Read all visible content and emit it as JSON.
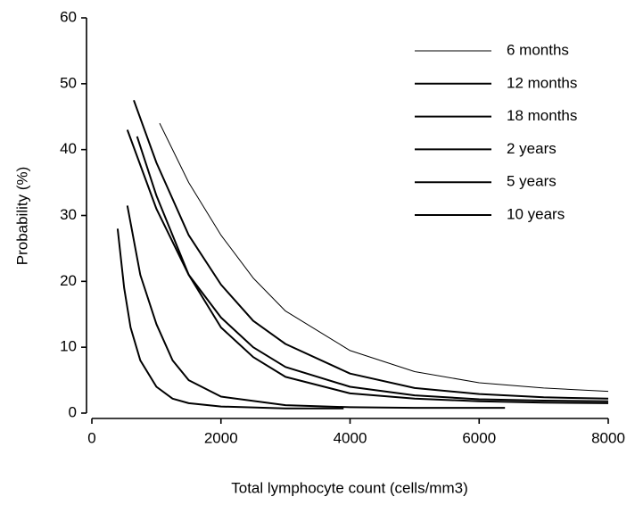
{
  "chart_data": {
    "type": "line",
    "x_label": "Total lymphocyte count (cells/mm3)",
    "y_label": "Probability (%)",
    "xlim": [
      0,
      8000
    ],
    "xticks": [
      0,
      2000,
      4000,
      6000,
      8000
    ],
    "ylim": [
      0,
      60
    ],
    "yticks": [
      0,
      10,
      20,
      30,
      40,
      50,
      60
    ],
    "grid": false,
    "legend": "upper right",
    "series": [
      {
        "name": "6 months",
        "color": "#000000",
        "width": 1,
        "x": [
          1050,
          1500,
          2000,
          2500,
          3000,
          4000,
          5000,
          6000,
          7000,
          8000
        ],
        "values": [
          44,
          35,
          27,
          20.5,
          15.5,
          9.5,
          6.3,
          4.6,
          3.8,
          3.3
        ]
      },
      {
        "name": "12 months",
        "color": "#000000",
        "width": 2,
        "x": [
          650,
          1000,
          1500,
          2000,
          2500,
          3000,
          4000,
          5000,
          6000,
          7000,
          8000
        ],
        "values": [
          47.5,
          38,
          27,
          19.5,
          14,
          10.5,
          6,
          3.8,
          2.9,
          2.4,
          2.2
        ]
      },
      {
        "name": "18 months",
        "color": "#000000",
        "width": 2,
        "x": [
          550,
          1000,
          1500,
          2000,
          2500,
          3000,
          4000,
          5000,
          6000,
          7000,
          8000
        ],
        "values": [
          43,
          31,
          21,
          14.5,
          10,
          7,
          4,
          2.7,
          2.1,
          1.9,
          1.8
        ]
      },
      {
        "name": "2 years",
        "color": "#000000",
        "width": 2,
        "x": [
          700,
          1000,
          1500,
          2000,
          2500,
          3000,
          4000,
          5000,
          6000,
          7000,
          8000
        ],
        "values": [
          42,
          33,
          21,
          13,
          8.5,
          5.5,
          3,
          2.2,
          1.8,
          1.6,
          1.5
        ]
      },
      {
        "name": "5 years",
        "color": "#000000",
        "width": 2,
        "x": [
          550,
          750,
          1000,
          1250,
          1500,
          2000,
          3000,
          4000,
          5000,
          6400
        ],
        "values": [
          31.5,
          21,
          13.5,
          8,
          5,
          2.5,
          1.2,
          0.9,
          0.8,
          0.8
        ]
      },
      {
        "name": "10 years",
        "color": "#000000",
        "width": 2,
        "x": [
          400,
          500,
          600,
          750,
          1000,
          1250,
          1500,
          2000,
          3000,
          3900
        ],
        "values": [
          28,
          19,
          13,
          8,
          4,
          2.2,
          1.5,
          1,
          0.7,
          0.7
        ]
      }
    ]
  }
}
